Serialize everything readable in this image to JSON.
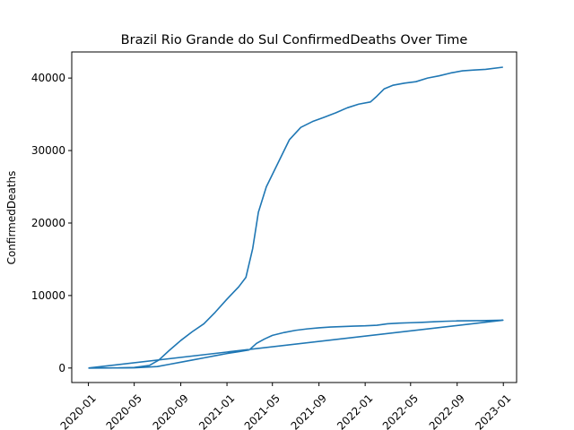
{
  "chart_data": {
    "type": "line",
    "title": "Brazil Rio Grande do Sul ConfirmedDeaths Over Time",
    "xlabel": "",
    "ylabel": "ConfirmedDeaths",
    "x_ticks": [
      "2020-01",
      "2020-05",
      "2020-09",
      "2021-01",
      "2021-05",
      "2021-09",
      "2022-01",
      "2022-05",
      "2022-09",
      "2023-01"
    ],
    "y_ticks": [
      0,
      10000,
      20000,
      30000,
      40000
    ],
    "xlim": [
      "2019-11-18",
      "2023-02-05"
    ],
    "ylim": [
      -2000,
      43600
    ],
    "grid": false,
    "line_color": "#1f77b4",
    "series": [
      {
        "values": [
          [
            "2020-01-01",
            0
          ],
          [
            "2020-03-20",
            10
          ],
          [
            "2020-05-01",
            80
          ],
          [
            "2020-06-10",
            350
          ],
          [
            "2020-07-05",
            1100
          ],
          [
            "2020-08-01",
            2400
          ],
          [
            "2020-09-01",
            3800
          ],
          [
            "2020-10-01",
            5000
          ],
          [
            "2020-11-01",
            6100
          ],
          [
            "2020-12-01",
            7700
          ],
          [
            "2021-01-01",
            9500
          ],
          [
            "2021-02-01",
            11200
          ],
          [
            "2021-02-20",
            12500
          ],
          [
            "2021-03-10",
            16500
          ],
          [
            "2021-03-25",
            21500
          ],
          [
            "2021-04-15",
            25000
          ],
          [
            "2021-05-15",
            28200
          ],
          [
            "2021-06-15",
            31500
          ],
          [
            "2021-07-15",
            33200
          ],
          [
            "2021-08-15",
            34000
          ],
          [
            "2021-09-15",
            34600
          ],
          [
            "2021-10-15",
            35200
          ],
          [
            "2021-11-15",
            35900
          ],
          [
            "2021-12-15",
            36400
          ],
          [
            "2022-01-15",
            36700
          ],
          [
            "2022-02-01",
            37500
          ],
          [
            "2022-02-20",
            38500
          ],
          [
            "2022-03-15",
            39000
          ],
          [
            "2022-04-15",
            39300
          ],
          [
            "2022-05-15",
            39500
          ],
          [
            "2022-06-15",
            40000
          ],
          [
            "2022-07-15",
            40300
          ],
          [
            "2022-08-15",
            40700
          ],
          [
            "2022-09-15",
            41000
          ],
          [
            "2022-10-15",
            41100
          ],
          [
            "2022-11-15",
            41200
          ],
          [
            "2022-12-31",
            41500
          ]
        ]
      },
      {
        "values": [
          [
            "2020-01-01",
            0
          ],
          [
            "2020-05-01",
            30
          ],
          [
            "2020-07-01",
            200
          ],
          [
            "2020-08-01",
            500
          ],
          [
            "2020-09-01",
            800
          ],
          [
            "2020-10-01",
            1100
          ],
          [
            "2020-11-01",
            1400
          ],
          [
            "2020-12-01",
            1700
          ],
          [
            "2021-01-01",
            2000
          ],
          [
            "2021-02-01",
            2250
          ],
          [
            "2021-03-01",
            2500
          ],
          [
            "2021-03-20",
            3400
          ],
          [
            "2021-04-10",
            4000
          ],
          [
            "2021-05-01",
            4500
          ],
          [
            "2021-06-01",
            4900
          ],
          [
            "2021-07-01",
            5200
          ],
          [
            "2021-08-01",
            5400
          ],
          [
            "2021-09-01",
            5550
          ],
          [
            "2021-10-01",
            5650
          ],
          [
            "2021-11-01",
            5720
          ],
          [
            "2021-12-01",
            5780
          ],
          [
            "2022-01-01",
            5820
          ],
          [
            "2022-02-01",
            5900
          ],
          [
            "2022-03-01",
            6100
          ],
          [
            "2022-04-01",
            6200
          ],
          [
            "2022-05-01",
            6250
          ],
          [
            "2022-06-01",
            6300
          ],
          [
            "2022-07-01",
            6380
          ],
          [
            "2022-08-01",
            6450
          ],
          [
            "2022-09-01",
            6500
          ],
          [
            "2022-10-01",
            6520
          ],
          [
            "2022-11-01",
            6540
          ],
          [
            "2022-12-31",
            6600
          ],
          [
            "2020-01-01",
            0
          ]
        ]
      }
    ]
  }
}
